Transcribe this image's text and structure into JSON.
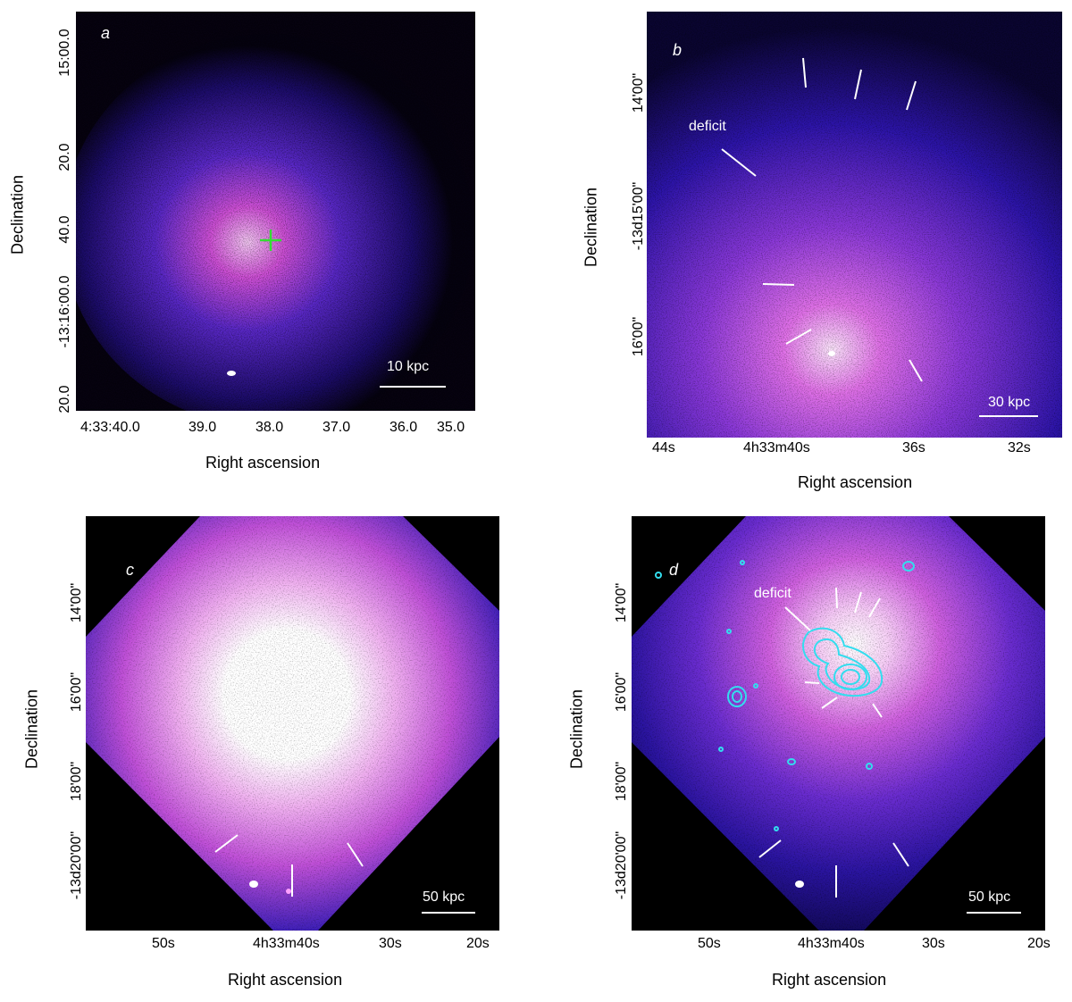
{
  "panels": {
    "a": {
      "label": "a",
      "x_ticks": [
        "4:33:40.0",
        "39.0",
        "38.0",
        "37.0",
        "36.0",
        "35.0"
      ],
      "y_ticks": [
        "15:00.0",
        "20.0",
        "40.0",
        "-13:16:00.0",
        "20.0"
      ],
      "x_label": "Right ascension",
      "y_label": "Declination",
      "scale_bar": "10 kpc"
    },
    "b": {
      "label": "b",
      "x_ticks": [
        "44s",
        "4h33m40s",
        "36s",
        "32s"
      ],
      "y_ticks": [
        "14'00\"",
        "-13d15'00\"",
        "16'00\""
      ],
      "x_label": "Right ascension",
      "y_label": "Declination",
      "scale_bar": "30 kpc",
      "annotation": "deficit"
    },
    "c": {
      "label": "c",
      "x_ticks": [
        "50s",
        "4h33m40s",
        "30s",
        "20s"
      ],
      "y_ticks": [
        "14'00\"",
        "16'00\"",
        "18'00\"",
        "-13d20'00\""
      ],
      "x_label": "Right ascension",
      "y_label": "Declination",
      "scale_bar": "50 kpc"
    },
    "d": {
      "label": "d",
      "x_ticks": [
        "50s",
        "4h33m40s",
        "30s",
        "20s"
      ],
      "y_ticks": [
        "14'00\"",
        "16'00\"",
        "18'00\"",
        "-13d20'00\""
      ],
      "x_label": "Right ascension",
      "y_label": "Declination",
      "scale_bar": "50 kpc",
      "annotation": "deficit"
    }
  },
  "colors": {
    "background": "#000000",
    "cluster_core": "#ffffff",
    "cluster_mid": "#e060e0",
    "cluster_outer": "#3018c0",
    "marker": "#33dd33",
    "contour": "#33ddee",
    "annotation": "#ffffff"
  }
}
